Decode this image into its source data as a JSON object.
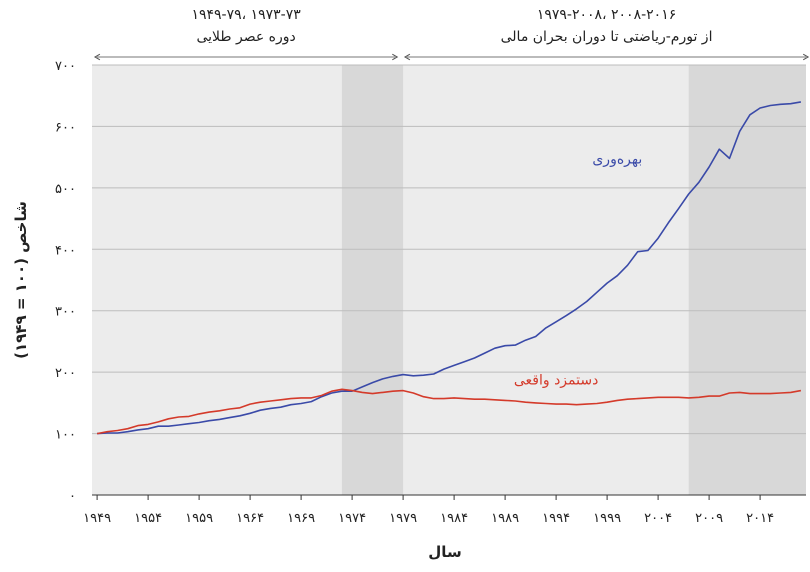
{
  "chart_data": {
    "type": "line",
    "xlabel": "سال",
    "ylabel": "شاخص (۱۰۰ = ۱۹۴۹)",
    "xlim": [
      1948.5,
      2018.5
    ],
    "ylim": [
      0,
      700
    ],
    "grid": true,
    "yticks": [
      {
        "value": 0,
        "label": "۰"
      },
      {
        "value": 100,
        "label": "۱۰۰"
      },
      {
        "value": 200,
        "label": "۲۰۰"
      },
      {
        "value": 300,
        "label": "۳۰۰"
      },
      {
        "value": 400,
        "label": "۴۰۰"
      },
      {
        "value": 500,
        "label": "۵۰۰"
      },
      {
        "value": 600,
        "label": "۶۰۰"
      },
      {
        "value": 700,
        "label": "۷۰۰"
      }
    ],
    "xticks": [
      {
        "value": 1949,
        "label": "۱۹۴۹"
      },
      {
        "value": 1954,
        "label": "۱۹۵۴"
      },
      {
        "value": 1959,
        "label": "۱۹۵۹"
      },
      {
        "value": 1964,
        "label": "۱۹۶۴"
      },
      {
        "value": 1969,
        "label": "۱۹۶۹"
      },
      {
        "value": 1974,
        "label": "۱۹۷۴"
      },
      {
        "value": 1979,
        "label": "۱۹۷۹"
      },
      {
        "value": 1984,
        "label": "۱۹۸۴"
      },
      {
        "value": 1989,
        "label": "۱۹۸۹"
      },
      {
        "value": 1994,
        "label": "۱۹۹۴"
      },
      {
        "value": 1999,
        "label": "۱۹۹۹"
      },
      {
        "value": 2004,
        "label": "۲۰۰۴"
      },
      {
        "value": 2009,
        "label": "۲۰۰۹"
      },
      {
        "value": 2014,
        "label": "۲۰۱۴"
      }
    ],
    "periods": [
      {
        "label_top": "۱۹۴۹-۷۹، ۱۹۷۳-۷۳",
        "label_bottom": "دوره عصر طلایی",
        "from": 1949,
        "to": 1979
      },
      {
        "label_top": "۱۹۷۹-۲۰۰۸، ۲۰۰۸-۲۰۱۶",
        "label_bottom": "از تورم-ریاضتی تا دوران بحران مالی",
        "from": 1979,
        "to": 2018.5
      }
    ],
    "shaded_ranges": [
      [
        1973,
        1979
      ],
      [
        2007,
        2018.5
      ]
    ],
    "x": [
      1949,
      1950,
      1951,
      1952,
      1953,
      1954,
      1955,
      1956,
      1957,
      1958,
      1959,
      1960,
      1961,
      1962,
      1963,
      1964,
      1965,
      1966,
      1967,
      1968,
      1969,
      1970,
      1971,
      1972,
      1973,
      1974,
      1975,
      1976,
      1977,
      1978,
      1979,
      1980,
      1981,
      1982,
      1983,
      1984,
      1985,
      1986,
      1987,
      1988,
      1989,
      1990,
      1991,
      1992,
      1993,
      1994,
      1995,
      1996,
      1997,
      1998,
      1999,
      2000,
      2001,
      2002,
      2003,
      2004,
      2005,
      2006,
      2007,
      2008,
      2009,
      2010,
      2011,
      2012,
      2013,
      2014,
      2015,
      2016,
      2017,
      2018
    ],
    "series": [
      {
        "name": "بهره‌وری",
        "color": "#3a4aa8",
        "values": [
          100,
          101,
          101,
          103,
          106,
          108,
          112,
          112,
          114,
          116,
          118,
          121,
          123,
          126,
          129,
          133,
          138,
          141,
          143,
          147,
          149,
          152,
          160,
          166,
          169,
          169,
          176,
          183,
          189,
          193,
          196,
          194,
          195,
          197,
          205,
          211,
          217,
          223,
          231,
          239,
          243,
          244,
          252,
          258,
          272,
          282,
          292,
          303,
          315,
          330,
          345,
          357,
          374,
          396,
          398,
          418,
          443,
          466,
          490,
          509,
          534,
          563,
          548,
          592,
          619,
          630,
          634,
          636,
          637,
          640
        ]
      },
      {
        "name": "دستمزد واقعی",
        "color": "#d43a2a",
        "values": [
          100,
          103,
          105,
          108,
          113,
          115,
          119,
          124,
          127,
          128,
          132,
          135,
          137,
          140,
          142,
          148,
          151,
          153,
          155,
          157,
          158,
          158,
          162,
          169,
          172,
          170,
          167,
          165,
          167,
          169,
          170,
          166,
          160,
          157,
          157,
          158,
          157,
          156,
          156,
          155,
          154,
          153,
          151,
          150,
          149,
          148,
          148,
          147,
          148,
          149,
          151,
          154,
          156,
          157,
          158,
          159,
          159,
          159,
          158,
          159,
          161,
          161,
          166,
          167,
          165,
          165,
          165,
          166,
          167,
          170
        ]
      }
    ],
    "annotations": [
      {
        "text": "بهره‌وری",
        "x": 2000,
        "y": 540,
        "color": "#3a4aa8"
      },
      {
        "text": "دستمزد واقعی",
        "x": 1994,
        "y": 180,
        "color": "#d43a2a"
      }
    ]
  }
}
